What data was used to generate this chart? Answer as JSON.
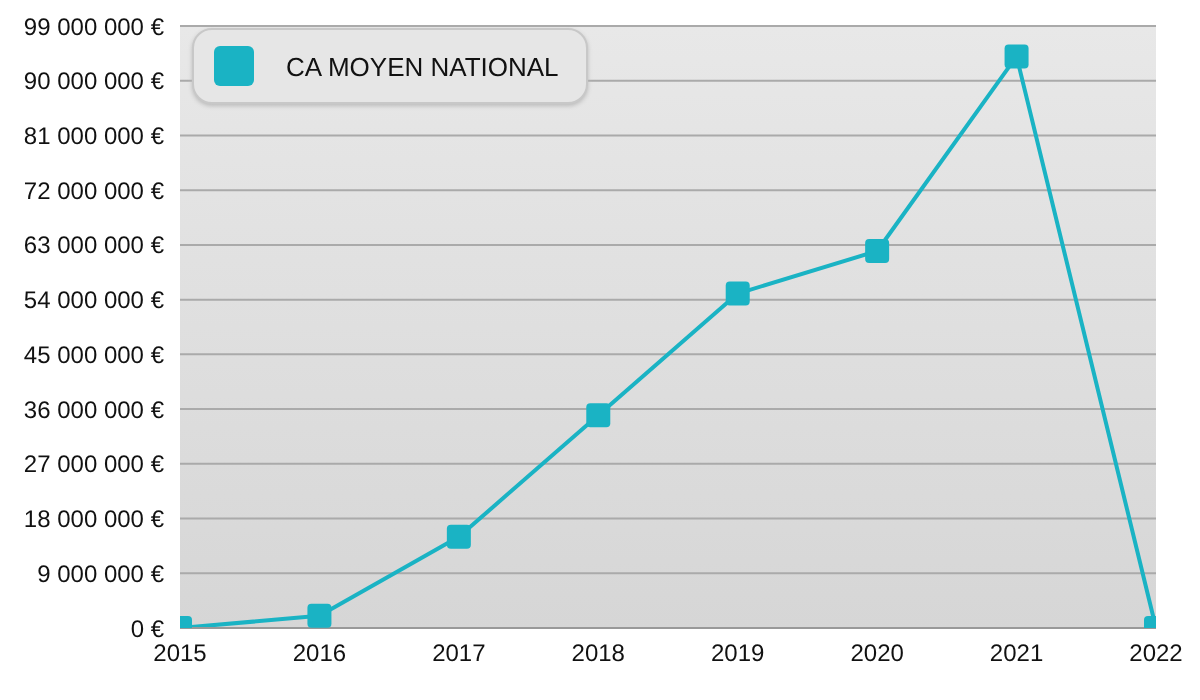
{
  "chart_data": {
    "type": "line",
    "x": [
      2015,
      2016,
      2017,
      2018,
      2019,
      2020,
      2021,
      2022
    ],
    "series": [
      {
        "name": "CA MOYEN NATIONAL",
        "color": "#1ab3c4",
        "values": [
          0,
          2000000,
          15000000,
          35000000,
          55000000,
          62000000,
          94000000,
          0
        ]
      }
    ],
    "xlim": [
      2015,
      2022
    ],
    "xticks": [
      2015,
      2016,
      2017,
      2018,
      2019,
      2020,
      2021,
      2022
    ],
    "ylim": [
      0,
      99000000
    ],
    "yticks": [
      {
        "value": 0,
        "label": "0 €"
      },
      {
        "value": 9000000,
        "label": "9 000 000 €"
      },
      {
        "value": 18000000,
        "label": "18 000 000 €"
      },
      {
        "value": 27000000,
        "label": "27 000 000 €"
      },
      {
        "value": 36000000,
        "label": "36 000 000 €"
      },
      {
        "value": 45000000,
        "label": "45 000 000 €"
      },
      {
        "value": 54000000,
        "label": "54 000 000 €"
      },
      {
        "value": 63000000,
        "label": "63 000 000 €"
      },
      {
        "value": 72000000,
        "label": "72 000 000 €"
      },
      {
        "value": 81000000,
        "label": "81 000 000 €"
      },
      {
        "value": 90000000,
        "label": "90 000 000 €"
      },
      {
        "value": 99000000,
        "label": "99 000 000 €"
      }
    ],
    "grid": "y",
    "legend": "top left",
    "marker": "square",
    "line_style": "solid"
  }
}
